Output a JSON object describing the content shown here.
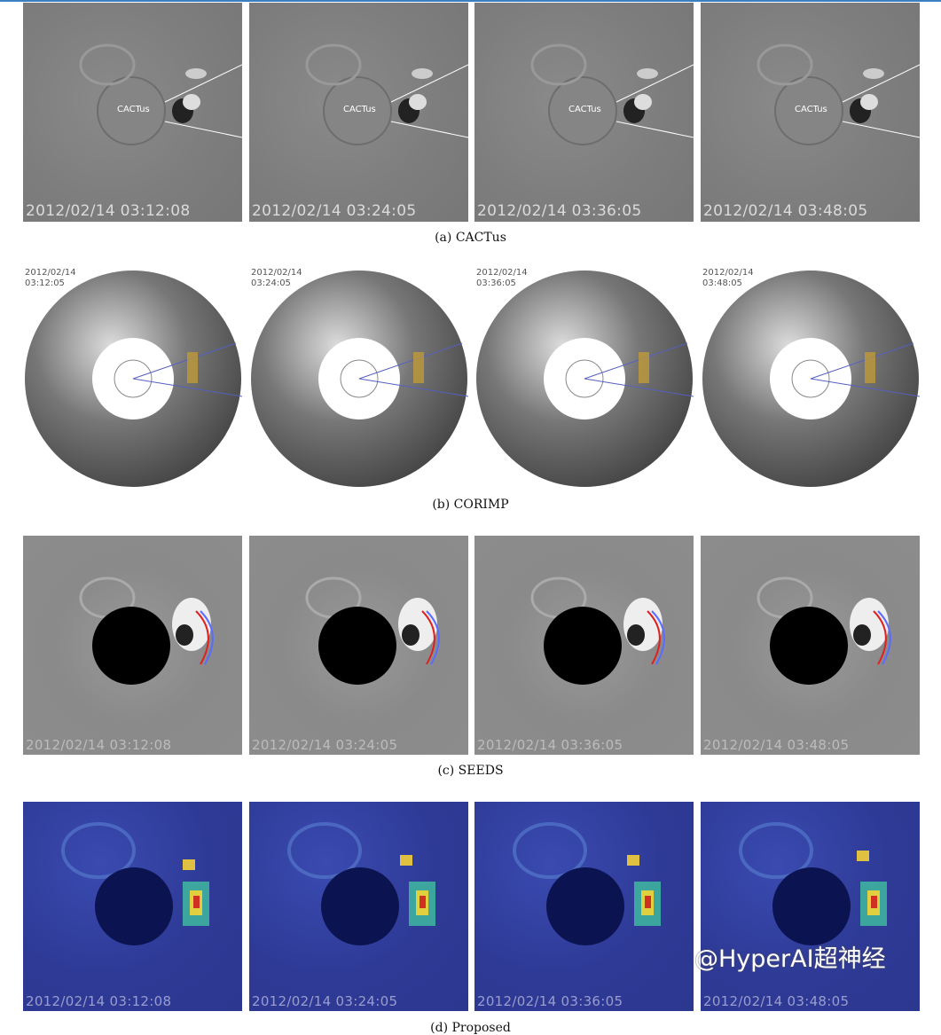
{
  "rows": [
    {
      "key": "a",
      "caption": "(a) CACTus",
      "overlay_label": "CACTus",
      "timestamps": [
        "2012/02/14 03:12:08",
        "2012/02/14 03:24:05",
        "2012/02/14 03:36:05",
        "2012/02/14 03:48:05"
      ]
    },
    {
      "key": "b",
      "caption": "(b) CORIMP",
      "dates": [
        "2012/02/14",
        "2012/02/14",
        "2012/02/14",
        "2012/02/14"
      ],
      "times": [
        "03:12:05",
        "03:24:05",
        "03:36:05",
        "03:48:05"
      ]
    },
    {
      "key": "c",
      "caption": "(c) SEEDS",
      "timestamps": [
        "2012/02/14 03:12:08",
        "2012/02/14 03:24:05",
        "2012/02/14 03:36:05",
        "2012/02/14 03:48:05"
      ]
    },
    {
      "key": "d",
      "caption": "(d) Proposed",
      "timestamps": [
        "2012/02/14 03:12:08",
        "2012/02/14 03:24:05",
        "2012/02/14 03:36:05",
        "2012/02/14 03:48:05"
      ]
    }
  ],
  "watermark": "@HyperAI超神经",
  "colors": {
    "accent_line": "#3a7fc0",
    "seeds_red": "#e02020",
    "seeds_blue": "#5a6cff",
    "proposed_bg": "#2e3a96"
  }
}
